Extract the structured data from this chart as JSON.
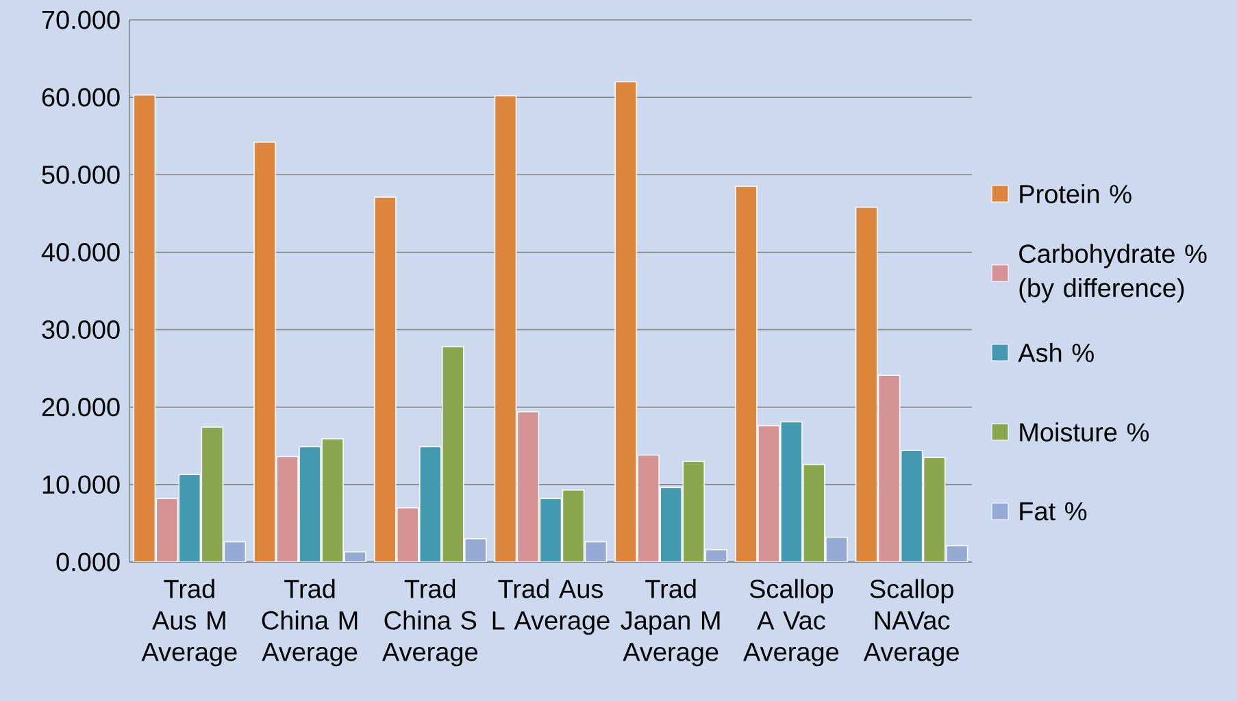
{
  "chart_data": {
    "type": "bar",
    "categories": [
      "Trad Aus M Average",
      "Trad China M Average",
      "Trad China S Average",
      "Trad Aus L Average",
      "Trad Japan M Average",
      "Scallop A Vac Average",
      "Scallop NAVac Average"
    ],
    "series": [
      {
        "name": "Protein %",
        "color": "#dd843d",
        "values": [
          60.3,
          54.2,
          47.1,
          60.2,
          62.0,
          48.5,
          45.8
        ]
      },
      {
        "name": "Carbohydrate % (by difference)",
        "color": "#d49292",
        "values": [
          8.2,
          13.6,
          7.0,
          19.4,
          13.8,
          17.6,
          24.1
        ]
      },
      {
        "name": "Ash %",
        "color": "#4399b0",
        "values": [
          11.3,
          14.9,
          14.9,
          8.2,
          9.6,
          18.1,
          14.4
        ]
      },
      {
        "name": "Moisture %",
        "color": "#8aa64e",
        "values": [
          17.4,
          15.9,
          27.8,
          9.3,
          13.0,
          12.6,
          13.5
        ]
      },
      {
        "name": "Fat %",
        "color": "#95abd5",
        "values": [
          2.6,
          1.3,
          3.0,
          2.6,
          1.6,
          3.2,
          2.1
        ]
      }
    ],
    "ylim": [
      0,
      70
    ],
    "yticks": [
      {
        "value": 0,
        "label": "0.000"
      },
      {
        "value": 10,
        "label": "10.000"
      },
      {
        "value": 20,
        "label": "20.000"
      },
      {
        "value": 30,
        "label": "30.000"
      },
      {
        "value": 40,
        "label": "40.000"
      },
      {
        "value": 50,
        "label": "50.000"
      },
      {
        "value": 60,
        "label": "60.000"
      },
      {
        "value": 70,
        "label": "70.000"
      }
    ],
    "grid": "y",
    "legend": "right"
  }
}
